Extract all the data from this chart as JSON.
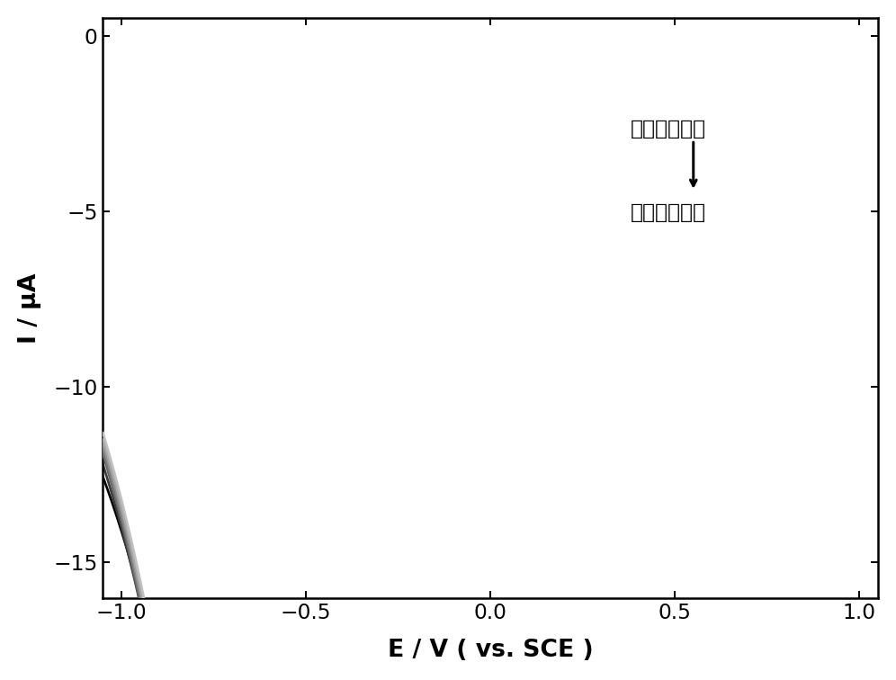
{
  "xlabel": "E / V ( vs. SCE )",
  "ylabel": "I / μA",
  "xlim": [
    -1.05,
    1.05
  ],
  "ylim": [
    -16,
    0.5
  ],
  "xticks": [
    -1.0,
    -0.5,
    0.0,
    0.5,
    1.0
  ],
  "yticks": [
    0,
    -5,
    -10,
    -15
  ],
  "annotation_low": "葫葡糖低浓度",
  "annotation_high": "葫葡糖高浓度",
  "num_curves": 7,
  "background_color": "#ffffff",
  "colors": [
    "#c0c0c0",
    "#a8a8a8",
    "#909090",
    "#787878",
    "#606060",
    "#3a3a3a",
    "#000000"
  ],
  "figsize": [
    8.3,
    6.3
  ],
  "dpi": 120
}
